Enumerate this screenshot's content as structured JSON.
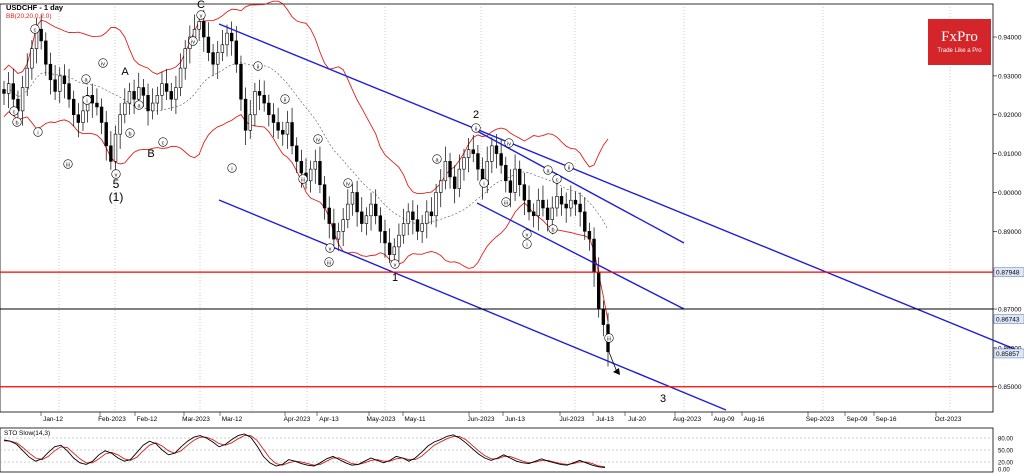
{
  "header": {
    "symbol_title": "USDCHF - 1 day",
    "indicator_label": "BB(20,20,0,2.0)"
  },
  "logo": {
    "brand": "FxPro",
    "tagline": "Trade Like a Pro",
    "color": "#d3252a"
  },
  "colors": {
    "candles": "#000000",
    "bands": "#e0201a",
    "channel": "#1f1fd6",
    "support_resistance": "#ff0000",
    "level_line": "#000000",
    "stoch_main": "#000000",
    "stoch_signal": "#d02020",
    "price_tag_bg": "#dfe7f7"
  },
  "chart_data": {
    "type": "candlestick",
    "symbol": "USDCHF",
    "timeframe": "1 day",
    "ylim": [
      0.8435,
      0.9485
    ],
    "y_ticks": [
      "0.94000",
      "0.93000",
      "0.92000",
      "0.91000",
      "0.90000",
      "0.89000",
      "0.88000",
      "0.87000",
      "0.86000",
      "0.85000"
    ],
    "x_ticks": [
      "Jan-12",
      "Feb-2023",
      "Feb-12",
      "Mar-2023",
      "Mar-12",
      "Apr-2023",
      "Apr-13",
      "May-2023",
      "May-11",
      "Jun-2023",
      "Jun-13",
      "Jul-2023",
      "Jul-13",
      "Jul-20",
      "Aug-2023",
      "Aug-09",
      "Aug-16",
      "Sep-2023",
      "Sep-09",
      "Sep-16",
      "Oct-2023"
    ],
    "price_tags": [
      "0.87948",
      "0.86743",
      "0.85857"
    ],
    "candles_close": [
      0.9255,
      0.928,
      0.924,
      0.921,
      0.927,
      0.932,
      0.937,
      0.942,
      0.939,
      0.933,
      0.929,
      0.926,
      0.93,
      0.928,
      0.924,
      0.92,
      0.918,
      0.921,
      0.925,
      0.923,
      0.922,
      0.918,
      0.912,
      0.908,
      0.915,
      0.92,
      0.923,
      0.926,
      0.924,
      0.927,
      0.925,
      0.921,
      0.923,
      0.925,
      0.928,
      0.926,
      0.924,
      0.927,
      0.932,
      0.937,
      0.94,
      0.942,
      0.944,
      0.94,
      0.936,
      0.933,
      0.936,
      0.938,
      0.941,
      0.939,
      0.933,
      0.924,
      0.916,
      0.92,
      0.926,
      0.925,
      0.923,
      0.92,
      0.918,
      0.916,
      0.915,
      0.918,
      0.912,
      0.908,
      0.905,
      0.903,
      0.906,
      0.908,
      0.902,
      0.896,
      0.892,
      0.888,
      0.89,
      0.893,
      0.897,
      0.9,
      0.895,
      0.892,
      0.894,
      0.897,
      0.894,
      0.89,
      0.887,
      0.884,
      0.886,
      0.889,
      0.892,
      0.895,
      0.893,
      0.89,
      0.892,
      0.895,
      0.894,
      0.9,
      0.903,
      0.908,
      0.904,
      0.901,
      0.906,
      0.909,
      0.911,
      0.91,
      0.906,
      0.902,
      0.908,
      0.912,
      0.91,
      0.907,
      0.903,
      0.9,
      0.906,
      0.902,
      0.898,
      0.895,
      0.894,
      0.898,
      0.896,
      0.893,
      0.896,
      0.899,
      0.897,
      0.896,
      0.898,
      0.897,
      0.895,
      0.89,
      0.888,
      0.8795,
      0.87,
      0.866,
      0.859
    ],
    "elliott_labels": [
      "(1)",
      "5",
      "A",
      "B",
      "C",
      "1",
      "2",
      "3",
      "i",
      "ii",
      "iii",
      "iv",
      "v",
      "a",
      "b",
      "c"
    ],
    "stochastic": {
      "label": "STO Slow(14,3)",
      "levels": [
        "80.00",
        "50.00",
        "20.00",
        "0.00"
      ],
      "k": [
        75,
        72,
        64,
        48,
        32,
        22,
        28,
        44,
        58,
        62,
        48,
        30,
        18,
        14,
        22,
        38,
        48,
        42,
        30,
        22,
        26,
        44,
        62,
        72,
        66,
        50,
        38,
        42,
        58,
        72,
        82,
        86,
        80,
        70,
        58,
        64,
        76,
        86,
        90,
        82,
        60,
        34,
        18,
        10,
        14,
        26,
        22,
        16,
        12,
        10,
        18,
        28,
        34,
        26,
        18,
        12,
        14,
        22,
        30,
        24,
        18,
        24,
        34,
        30,
        22,
        30,
        44,
        60,
        70,
        76,
        84,
        88,
        80,
        68,
        54,
        40,
        30,
        24,
        30,
        38,
        30,
        22,
        18,
        16,
        22,
        28,
        22,
        18,
        14,
        12,
        18,
        24,
        18,
        12,
        8,
        6
      ],
      "d": [
        73,
        72,
        68,
        56,
        42,
        30,
        26,
        34,
        48,
        58,
        56,
        42,
        28,
        18,
        18,
        28,
        40,
        44,
        38,
        28,
        24,
        32,
        48,
        62,
        68,
        60,
        48,
        42,
        48,
        62,
        74,
        82,
        82,
        76,
        66,
        62,
        68,
        78,
        86,
        86,
        74,
        52,
        30,
        16,
        12,
        18,
        22,
        20,
        16,
        12,
        14,
        22,
        30,
        30,
        24,
        16,
        14,
        18,
        24,
        26,
        22,
        22,
        28,
        30,
        26,
        26,
        34,
        48,
        62,
        70,
        78,
        84,
        84,
        76,
        62,
        48,
        36,
        28,
        28,
        34,
        34,
        28,
        22,
        18,
        20,
        24,
        24,
        20,
        16,
        14,
        16,
        20,
        20,
        16,
        10,
        8
      ]
    }
  }
}
